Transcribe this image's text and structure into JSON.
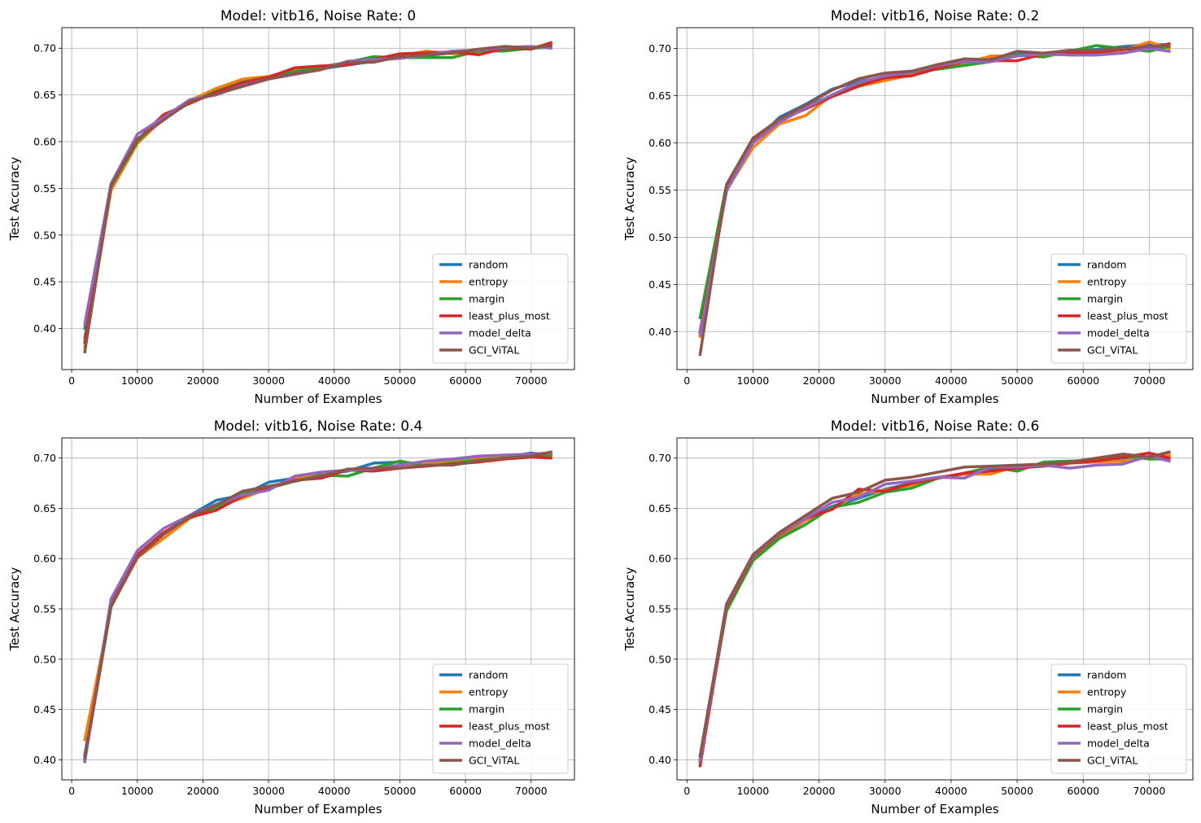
{
  "figure": {
    "series_names": [
      "random",
      "entropy",
      "margin",
      "least_plus_most",
      "model_delta",
      "GCI_ViTAL"
    ],
    "series_colors": [
      "#1f77b4",
      "#ff7f0e",
      "#2ca02c",
      "#d62728",
      "#9467bd",
      "#8c564b"
    ]
  },
  "chart_data": [
    {
      "type": "line",
      "title": "Model: vitb16, Noise Rate: 0",
      "xlabel": "Number of Examples",
      "ylabel": "Test Accuracy",
      "xlim": [
        -1500,
        76600
      ],
      "ylim": [
        0.356,
        0.722
      ],
      "xticks": [
        0,
        10000,
        20000,
        30000,
        40000,
        50000,
        60000,
        70000
      ],
      "yticks": [
        0.4,
        0.45,
        0.5,
        0.55,
        0.6,
        0.65,
        0.7
      ],
      "grid": true,
      "legend": "lower-right",
      "x": [
        2000,
        6000,
        10000,
        14000,
        18000,
        22000,
        26000,
        30000,
        34000,
        38000,
        42000,
        46000,
        50000,
        54000,
        58000,
        62000,
        66000,
        70000,
        73000
      ],
      "series": [
        {
          "name": "random",
          "values": [
            0.4,
            0.552,
            0.6,
            0.624,
            0.642,
            0.652,
            0.663,
            0.668,
            0.674,
            0.678,
            0.682,
            0.686,
            0.69,
            0.692,
            0.695,
            0.697,
            0.699,
            0.701,
            0.703
          ]
        },
        {
          "name": "entropy",
          "values": [
            0.38,
            0.548,
            0.598,
            0.625,
            0.644,
            0.657,
            0.667,
            0.67,
            0.676,
            0.679,
            0.684,
            0.686,
            0.692,
            0.697,
            0.694,
            0.696,
            0.698,
            0.701,
            0.704
          ]
        },
        {
          "name": "margin",
          "values": [
            0.39,
            0.552,
            0.6,
            0.626,
            0.642,
            0.654,
            0.664,
            0.669,
            0.675,
            0.68,
            0.685,
            0.691,
            0.69,
            0.69,
            0.69,
            0.697,
            0.697,
            0.7,
            0.701
          ]
        },
        {
          "name": "least_plus_most",
          "values": [
            0.385,
            0.553,
            0.602,
            0.629,
            0.641,
            0.653,
            0.663,
            0.669,
            0.679,
            0.681,
            0.682,
            0.688,
            0.694,
            0.695,
            0.696,
            0.693,
            0.7,
            0.699,
            0.706
          ]
        },
        {
          "name": "model_delta",
          "values": [
            0.405,
            0.555,
            0.608,
            0.626,
            0.645,
            0.65,
            0.66,
            0.667,
            0.672,
            0.677,
            0.686,
            0.688,
            0.689,
            0.693,
            0.697,
            0.698,
            0.701,
            0.702,
            0.7
          ]
        },
        {
          "name": "GCI_ViTAL",
          "values": [
            0.375,
            0.553,
            0.603,
            0.623,
            0.643,
            0.651,
            0.659,
            0.667,
            0.673,
            0.677,
            0.685,
            0.685,
            0.691,
            0.693,
            0.695,
            0.699,
            0.702,
            0.7,
            0.703
          ]
        }
      ]
    },
    {
      "type": "line",
      "title": "Model: vitb16, Noise Rate: 0.2",
      "xlabel": "Number of Examples",
      "ylabel": "Test Accuracy",
      "xlim": [
        -1500,
        76600
      ],
      "ylim": [
        0.36,
        0.722
      ],
      "xticks": [
        0,
        10000,
        20000,
        30000,
        40000,
        50000,
        60000,
        70000
      ],
      "yticks": [
        0.4,
        0.45,
        0.5,
        0.55,
        0.6,
        0.65,
        0.7
      ],
      "grid": true,
      "legend": "lower-right",
      "x": [
        2000,
        6000,
        10000,
        14000,
        18000,
        22000,
        26000,
        30000,
        34000,
        38000,
        42000,
        46000,
        50000,
        54000,
        58000,
        62000,
        66000,
        70000,
        73000
      ],
      "series": [
        {
          "name": "random",
          "values": [
            0.4,
            0.553,
            0.6,
            0.627,
            0.641,
            0.657,
            0.665,
            0.67,
            0.674,
            0.683,
            0.686,
            0.69,
            0.694,
            0.694,
            0.697,
            0.699,
            0.702,
            0.704,
            0.704
          ]
        },
        {
          "name": "entropy",
          "values": [
            0.395,
            0.55,
            0.595,
            0.62,
            0.629,
            0.651,
            0.66,
            0.666,
            0.672,
            0.68,
            0.684,
            0.692,
            0.692,
            0.694,
            0.696,
            0.694,
            0.698,
            0.707,
            0.7
          ]
        },
        {
          "name": "margin",
          "values": [
            0.415,
            0.556,
            0.603,
            0.625,
            0.639,
            0.65,
            0.663,
            0.67,
            0.675,
            0.678,
            0.682,
            0.686,
            0.693,
            0.691,
            0.697,
            0.703,
            0.7,
            0.697,
            0.702
          ]
        },
        {
          "name": "least_plus_most",
          "values": [
            0.4,
            0.552,
            0.603,
            0.624,
            0.636,
            0.649,
            0.66,
            0.669,
            0.671,
            0.679,
            0.686,
            0.687,
            0.687,
            0.694,
            0.695,
            0.696,
            0.699,
            0.7,
            0.705
          ]
        },
        {
          "name": "model_delta",
          "values": [
            0.397,
            0.549,
            0.6,
            0.622,
            0.637,
            0.651,
            0.664,
            0.671,
            0.675,
            0.682,
            0.686,
            0.686,
            0.692,
            0.694,
            0.693,
            0.693,
            0.695,
            0.7,
            0.697
          ]
        },
        {
          "name": "GCI_ViTAL",
          "values": [
            0.376,
            0.556,
            0.605,
            0.625,
            0.64,
            0.656,
            0.668,
            0.674,
            0.676,
            0.683,
            0.689,
            0.688,
            0.697,
            0.695,
            0.698,
            0.698,
            0.7,
            0.702,
            0.703
          ]
        }
      ]
    },
    {
      "type": "line",
      "title": "Model: vitb16, Noise Rate: 0.4",
      "xlabel": "Number of Examples",
      "ylabel": "Test Accuracy",
      "xlim": [
        -1500,
        76600
      ],
      "ylim": [
        0.38,
        0.72
      ],
      "xticks": [
        0,
        10000,
        20000,
        30000,
        40000,
        50000,
        60000,
        70000
      ],
      "yticks": [
        0.4,
        0.45,
        0.5,
        0.55,
        0.6,
        0.65,
        0.7
      ],
      "grid": true,
      "legend": "lower-right",
      "x": [
        2000,
        6000,
        10000,
        14000,
        18000,
        22000,
        26000,
        30000,
        34000,
        38000,
        42000,
        46000,
        50000,
        54000,
        58000,
        62000,
        66000,
        70000,
        73000
      ],
      "series": [
        {
          "name": "random",
          "values": [
            0.405,
            0.555,
            0.603,
            0.625,
            0.643,
            0.658,
            0.663,
            0.676,
            0.68,
            0.684,
            0.687,
            0.695,
            0.696,
            0.694,
            0.697,
            0.7,
            0.701,
            0.705,
            0.703
          ]
        },
        {
          "name": "entropy",
          "values": [
            0.42,
            0.552,
            0.601,
            0.62,
            0.64,
            0.652,
            0.66,
            0.67,
            0.68,
            0.683,
            0.688,
            0.69,
            0.693,
            0.694,
            0.696,
            0.699,
            0.702,
            0.704,
            0.702
          ]
        },
        {
          "name": "margin",
          "values": [
            0.4,
            0.552,
            0.602,
            0.625,
            0.641,
            0.651,
            0.665,
            0.67,
            0.677,
            0.683,
            0.682,
            0.69,
            0.697,
            0.692,
            0.695,
            0.698,
            0.7,
            0.703,
            0.703
          ]
        },
        {
          "name": "least_plus_most",
          "values": [
            0.401,
            0.554,
            0.604,
            0.626,
            0.641,
            0.648,
            0.662,
            0.67,
            0.678,
            0.68,
            0.688,
            0.687,
            0.69,
            0.692,
            0.694,
            0.696,
            0.699,
            0.701,
            0.7
          ]
        },
        {
          "name": "model_delta",
          "values": [
            0.398,
            0.56,
            0.608,
            0.63,
            0.643,
            0.654,
            0.663,
            0.668,
            0.682,
            0.686,
            0.688,
            0.689,
            0.693,
            0.697,
            0.699,
            0.702,
            0.703,
            0.704,
            0.705
          ]
        },
        {
          "name": "GCI_ViTAL",
          "values": [
            0.402,
            0.553,
            0.601,
            0.624,
            0.642,
            0.653,
            0.667,
            0.672,
            0.677,
            0.682,
            0.689,
            0.69,
            0.69,
            0.693,
            0.693,
            0.697,
            0.7,
            0.702,
            0.706
          ]
        }
      ]
    },
    {
      "type": "line",
      "title": "Model: vitb16, Noise Rate: 0.6",
      "xlabel": "Number of Examples",
      "ylabel": "Test Accuracy",
      "xlim": [
        -1500,
        76600
      ],
      "ylim": [
        0.38,
        0.72
      ],
      "xticks": [
        0,
        10000,
        20000,
        30000,
        40000,
        50000,
        60000,
        70000
      ],
      "yticks": [
        0.4,
        0.45,
        0.5,
        0.55,
        0.6,
        0.65,
        0.7
      ],
      "grid": true,
      "legend": "lower-right",
      "x": [
        2000,
        6000,
        10000,
        14000,
        18000,
        22000,
        26000,
        30000,
        34000,
        38000,
        42000,
        46000,
        50000,
        54000,
        58000,
        62000,
        66000,
        70000,
        73000
      ],
      "series": [
        {
          "name": "random",
          "values": [
            0.4,
            0.552,
            0.6,
            0.622,
            0.638,
            0.652,
            0.66,
            0.669,
            0.675,
            0.68,
            0.684,
            0.688,
            0.691,
            0.694,
            0.696,
            0.698,
            0.7,
            0.701,
            0.703
          ]
        },
        {
          "name": "entropy",
          "values": [
            0.398,
            0.553,
            0.601,
            0.623,
            0.638,
            0.65,
            0.664,
            0.668,
            0.673,
            0.681,
            0.684,
            0.684,
            0.692,
            0.692,
            0.695,
            0.696,
            0.697,
            0.701,
            0.703
          ]
        },
        {
          "name": "margin",
          "values": [
            0.4,
            0.548,
            0.598,
            0.62,
            0.634,
            0.651,
            0.656,
            0.666,
            0.67,
            0.68,
            0.685,
            0.691,
            0.687,
            0.696,
            0.697,
            0.698,
            0.702,
            0.699,
            0.699
          ]
        },
        {
          "name": "least_plus_most",
          "values": [
            0.394,
            0.552,
            0.602,
            0.624,
            0.64,
            0.649,
            0.669,
            0.667,
            0.675,
            0.68,
            0.685,
            0.687,
            0.69,
            0.692,
            0.695,
            0.697,
            0.701,
            0.705,
            0.7
          ]
        },
        {
          "name": "model_delta",
          "values": [
            0.399,
            0.554,
            0.603,
            0.625,
            0.64,
            0.656,
            0.661,
            0.674,
            0.677,
            0.681,
            0.68,
            0.691,
            0.691,
            0.693,
            0.69,
            0.693,
            0.694,
            0.702,
            0.697
          ]
        },
        {
          "name": "GCI_ViTAL",
          "values": [
            0.404,
            0.555,
            0.604,
            0.626,
            0.643,
            0.66,
            0.666,
            0.678,
            0.681,
            0.686,
            0.691,
            0.692,
            0.693,
            0.694,
            0.696,
            0.7,
            0.704,
            0.701,
            0.706
          ]
        }
      ]
    }
  ]
}
